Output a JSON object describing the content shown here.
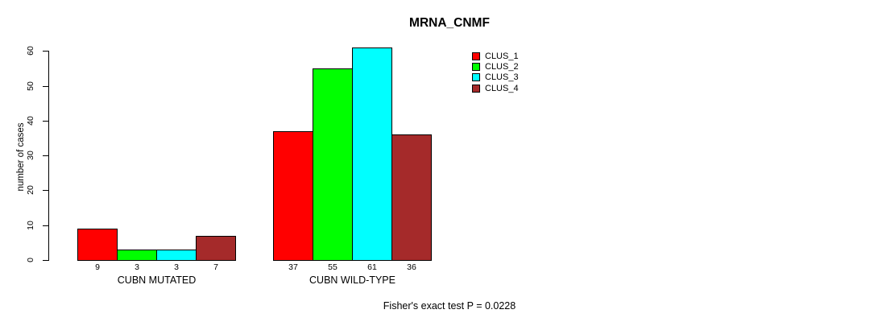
{
  "title": "MRNA_CNMF",
  "footer": "Fisher's exact test P = 0.0228",
  "colors": {
    "clus_1": "#FF0000",
    "clus_2": "#00FF00",
    "clus_3": "#00FFFF",
    "clus_4": "#A52A2A",
    "axis": "#000000",
    "background": "#FFFFFF"
  },
  "chart_data": {
    "type": "bar",
    "title": "MRNA_CNMF",
    "categories": [
      "CUBN MUTATED",
      "CUBN WILD-TYPE"
    ],
    "series": [
      {
        "name": "CLUS_1",
        "color": "#FF0000",
        "values": [
          9,
          37
        ]
      },
      {
        "name": "CLUS_2",
        "color": "#00FF00",
        "values": [
          3,
          55
        ]
      },
      {
        "name": "CLUS_3",
        "color": "#00FFFF",
        "values": [
          3,
          61
        ]
      },
      {
        "name": "CLUS_4",
        "color": "#A52A2A",
        "values": [
          7,
          36
        ]
      }
    ],
    "xlabel": "",
    "ylabel": "number of cases",
    "ylim": [
      0,
      60
    ],
    "yticks": [
      0,
      10,
      20,
      30,
      40,
      50,
      60
    ],
    "bar_value_labels": [
      [
        "9",
        "3",
        "3",
        "7"
      ],
      [
        "37",
        "55",
        "61",
        "36"
      ]
    ],
    "legend_position": "top-right",
    "legend_entries": [
      "CLUS_1",
      "CLUS_2",
      "CLUS_3",
      "CLUS_4"
    ],
    "grid": false,
    "annotation": "Fisher's exact test P = 0.0228"
  }
}
